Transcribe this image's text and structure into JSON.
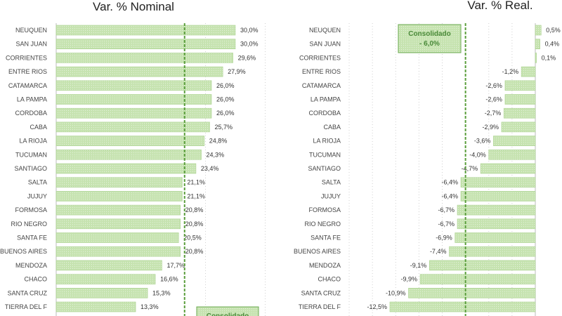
{
  "colors": {
    "bar": "#c6e3b0",
    "bar_border": "#a9d18e",
    "ref_line": "#5a9e3c",
    "box_fill": "#c6e3b0",
    "box_border": "#6aa84f"
  },
  "chart_data": [
    {
      "type": "bar",
      "orientation": "horizontal",
      "title": "Var. % Nominal",
      "categories": [
        "NEUQUEN",
        "SAN JUAN",
        "CORRIENTES",
        "ENTRE RIOS",
        "CATAMARCA",
        "LA PAMPA",
        "CORDOBA",
        "CABA",
        "LA RIOJA",
        "TUCUMAN",
        "SANTIAGO",
        "SALTA",
        "JUJUY",
        "FORMOSA",
        "RIO NEGRO",
        "SANTA FE",
        "BUENOS AIRES",
        "MENDOZA",
        "CHACO",
        "SANTA CRUZ",
        "TIERRA DEL F"
      ],
      "values": [
        30.0,
        30.0,
        29.6,
        27.9,
        26.0,
        26.0,
        26.0,
        25.7,
        24.8,
        24.3,
        23.4,
        21.1,
        21.1,
        20.8,
        20.8,
        20.5,
        20.8,
        17.7,
        16.6,
        15.3,
        13.3
      ],
      "labels": [
        "30,0%",
        "30,0%",
        "29,6%",
        "27,9%",
        "26,0%",
        "26,0%",
        "26,0%",
        "25,7%",
        "24,8%",
        "24,3%",
        "23,4%",
        "21,1%",
        "21,1%",
        "20,8%",
        "20,8%",
        "20,5%",
        "20,8%",
        "17,7%",
        "16,6%",
        "15,3%",
        "13,3%"
      ],
      "reference_line": 21.5,
      "annotation": {
        "text_line1": "Consolidado",
        "text_line2": ""
      },
      "xlim": [
        0,
        38
      ],
      "grid": true
    },
    {
      "type": "bar",
      "orientation": "horizontal",
      "title": "Var. % Real.",
      "categories": [
        "NEUQUEN",
        "SAN JUAN",
        "CORRIENTES",
        "ENTRE RIOS",
        "CATAMARCA",
        "LA PAMPA",
        "CORDOBA",
        "CABA",
        "LA RIOJA",
        "TUCUMAN",
        "SANTIAGO",
        "SALTA",
        "JUJUY",
        "FORMOSA",
        "RIO NEGRO",
        "SANTA FE",
        "BUENOS AIRES",
        "MENDOZA",
        "CHACO",
        "SANTA CRUZ",
        "TIERRA DEL F"
      ],
      "values": [
        0.5,
        0.4,
        0.1,
        -1.2,
        -2.6,
        -2.6,
        -2.7,
        -2.9,
        -3.6,
        -4.0,
        -4.7,
        -6.4,
        -6.4,
        -6.7,
        -6.7,
        -6.9,
        -7.4,
        -9.1,
        -9.9,
        -10.9,
        -12.5
      ],
      "labels": [
        "0,5%",
        "0,4%",
        "0,1%",
        "-1,2%",
        "-2,6%",
        "-2,6%",
        "-2,7%",
        "-2,9%",
        "-3,6%",
        "-4,0%",
        "-4,7%",
        "-6,4%",
        "-6,4%",
        "-6,7%",
        "-6,7%",
        "-6,9%",
        "-7,4%",
        "-9,1%",
        "-9,9%",
        "-10,9%",
        "-12,5%"
      ],
      "reference_line": -6.0,
      "annotation": {
        "text_line1": "Consolidado",
        "text_line2": "- 6,0%"
      },
      "xlim": [
        -14,
        1
      ],
      "grid": true
    }
  ]
}
